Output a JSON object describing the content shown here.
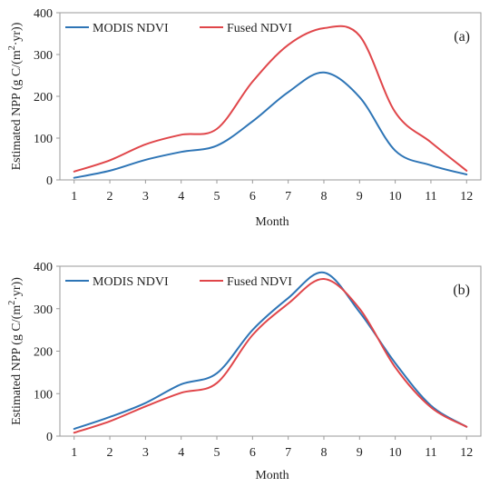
{
  "chart_data": [
    {
      "type": "line",
      "panel_label": "(a)",
      "xlabel": "Month",
      "ylabel": "Estimated NPP (g C/(m²·yr))",
      "ylabel_parts": {
        "pre": "Estimated NPP (g C/(m",
        "sup": "2",
        "post": "·yr))"
      },
      "x": [
        1,
        2,
        3,
        4,
        5,
        6,
        7,
        8,
        9,
        10,
        11,
        12
      ],
      "xlim": [
        0.6,
        12.4
      ],
      "ylim": [
        0,
        400
      ],
      "yticks": [
        0,
        100,
        200,
        300,
        400
      ],
      "grid": false,
      "legend_position": "top-left",
      "series": [
        {
          "name": "MODIS NDVI",
          "color": "#2e75b6",
          "values": [
            5,
            22,
            48,
            67,
            82,
            140,
            210,
            257,
            198,
            70,
            35,
            13
          ]
        },
        {
          "name": "Fused NDVI",
          "color": "#e0464a",
          "values": [
            20,
            47,
            85,
            108,
            122,
            235,
            323,
            363,
            345,
            162,
            90,
            22
          ]
        }
      ]
    },
    {
      "type": "line",
      "panel_label": "(b)",
      "xlabel": "Month",
      "ylabel": "Estimated NPP (g C/(m²·yr))",
      "ylabel_parts": {
        "pre": "Estimated NPP (g C/(m",
        "sup": "2",
        "post": "·yr))"
      },
      "x": [
        1,
        2,
        3,
        4,
        5,
        6,
        7,
        8,
        9,
        10,
        11,
        12
      ],
      "xlim": [
        0.6,
        12.4
      ],
      "ylim": [
        0,
        400
      ],
      "yticks": [
        0,
        100,
        200,
        300,
        400
      ],
      "grid": false,
      "legend_position": "top-left",
      "series": [
        {
          "name": "MODIS NDVI",
          "color": "#2e75b6",
          "values": [
            17,
            45,
            78,
            122,
            148,
            250,
            325,
            385,
            292,
            172,
            72,
            22
          ]
        },
        {
          "name": "Fused NDVI",
          "color": "#e0464a",
          "values": [
            8,
            35,
            70,
            102,
            125,
            238,
            312,
            370,
            300,
            162,
            68,
            22
          ]
        }
      ]
    }
  ]
}
